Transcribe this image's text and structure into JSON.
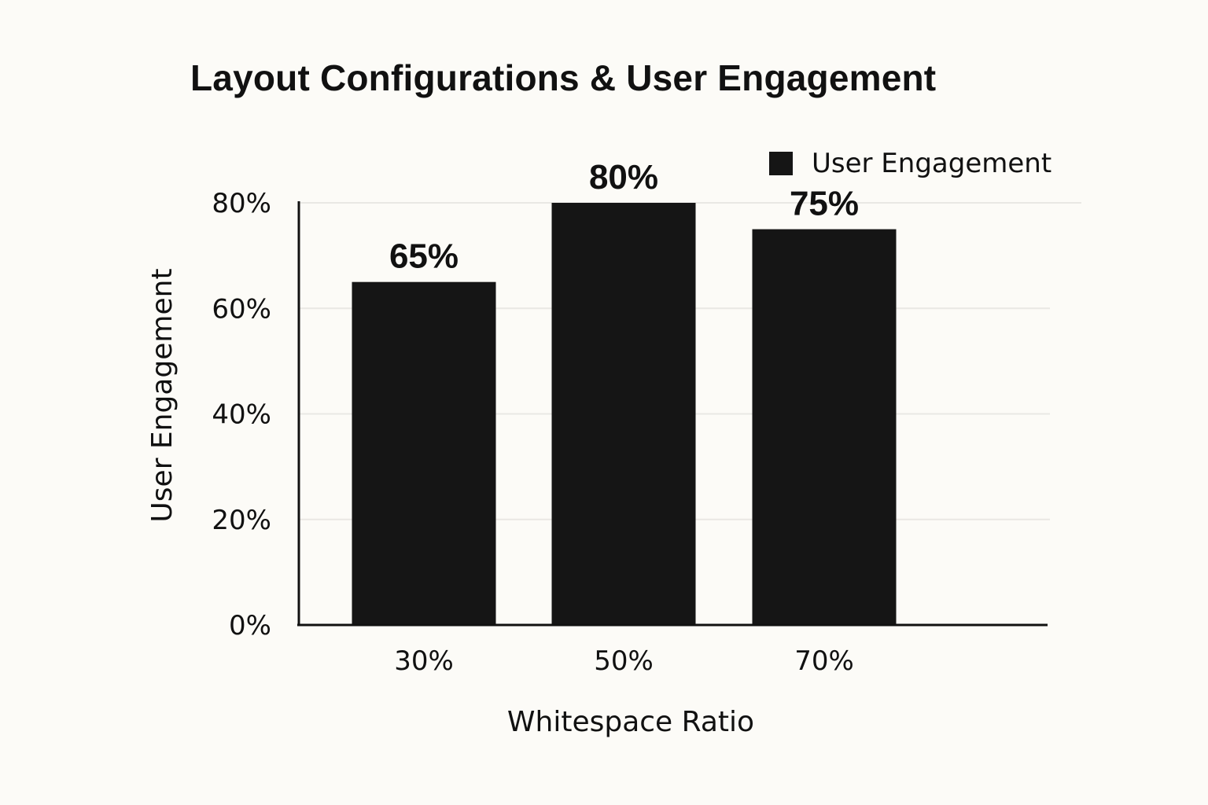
{
  "chart_data": {
    "type": "bar",
    "title": "Layout Configurations & User Engagement",
    "xlabel": "Whitespace Ratio",
    "ylabel": "User Engagement",
    "categories": [
      "30%",
      "50%",
      "70%"
    ],
    "series": [
      {
        "name": "User Engagement",
        "values": [
          65,
          80,
          75
        ],
        "color": "#151515"
      }
    ],
    "value_labels": [
      "65%",
      "80%",
      "75%"
    ],
    "yticks": [
      0,
      20,
      40,
      60,
      80
    ],
    "ytick_labels": [
      "0%",
      "20%",
      "40%",
      "60%",
      "80%"
    ],
    "ylim": [
      0,
      80
    ],
    "grid": true,
    "legend_position": "top-right"
  }
}
